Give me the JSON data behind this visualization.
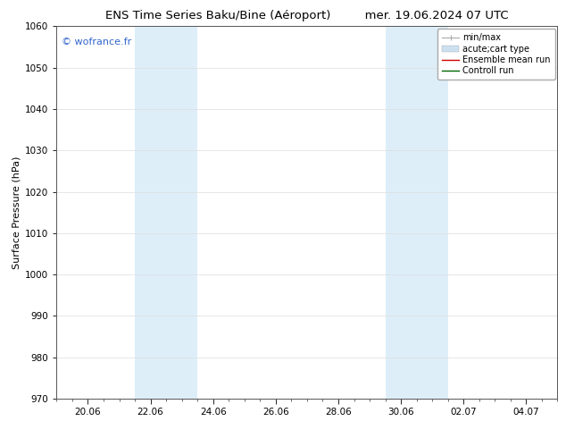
{
  "title_left": "ENS Time Series Baku/Bine (Aéroport)",
  "title_right": "mer. 19.06.2024 07 UTC",
  "ylabel": "Surface Pressure (hPa)",
  "ylim": [
    970,
    1060
  ],
  "yticks": [
    970,
    980,
    990,
    1000,
    1010,
    1020,
    1030,
    1040,
    1050,
    1060
  ],
  "xlim": [
    0,
    16
  ],
  "xtick_labels": [
    "20.06",
    "22.06",
    "24.06",
    "26.06",
    "28.06",
    "30.06",
    "02.07",
    "04.07"
  ],
  "xtick_positions": [
    1,
    3,
    5,
    7,
    9,
    11,
    13,
    15
  ],
  "xminor_positions": [
    0,
    0.5,
    1,
    1.5,
    2,
    2.5,
    3,
    3.5,
    4,
    4.5,
    5,
    5.5,
    6,
    6.5,
    7,
    7.5,
    8,
    8.5,
    9,
    9.5,
    10,
    10.5,
    11,
    11.5,
    12,
    12.5,
    13,
    13.5,
    14,
    14.5,
    15,
    15.5,
    16
  ],
  "shaded_regions": [
    {
      "start": 2.5,
      "end": 4.5,
      "color": "#ddeef8"
    },
    {
      "start": 10.5,
      "end": 12.5,
      "color": "#ddeef8"
    }
  ],
  "watermark": "© wofrance.fr",
  "watermark_color": "#3366cc",
  "legend_items": [
    {
      "label": "min/max",
      "color": "#aaaaaa",
      "lw": 1.0
    },
    {
      "label": "acute;cart type",
      "color": "#ccddee",
      "lw": 6
    },
    {
      "label": "Ensemble mean run",
      "color": "#cc0000",
      "lw": 1.0
    },
    {
      "label": "Controll run",
      "color": "#006600",
      "lw": 1.0
    }
  ],
  "bg_color": "#ffffff",
  "plot_bg_color": "#ffffff",
  "grid_color": "#dddddd",
  "title_fontsize": 9.5,
  "ylabel_fontsize": 8,
  "tick_fontsize": 7.5,
  "watermark_fontsize": 8,
  "legend_fontsize": 7
}
